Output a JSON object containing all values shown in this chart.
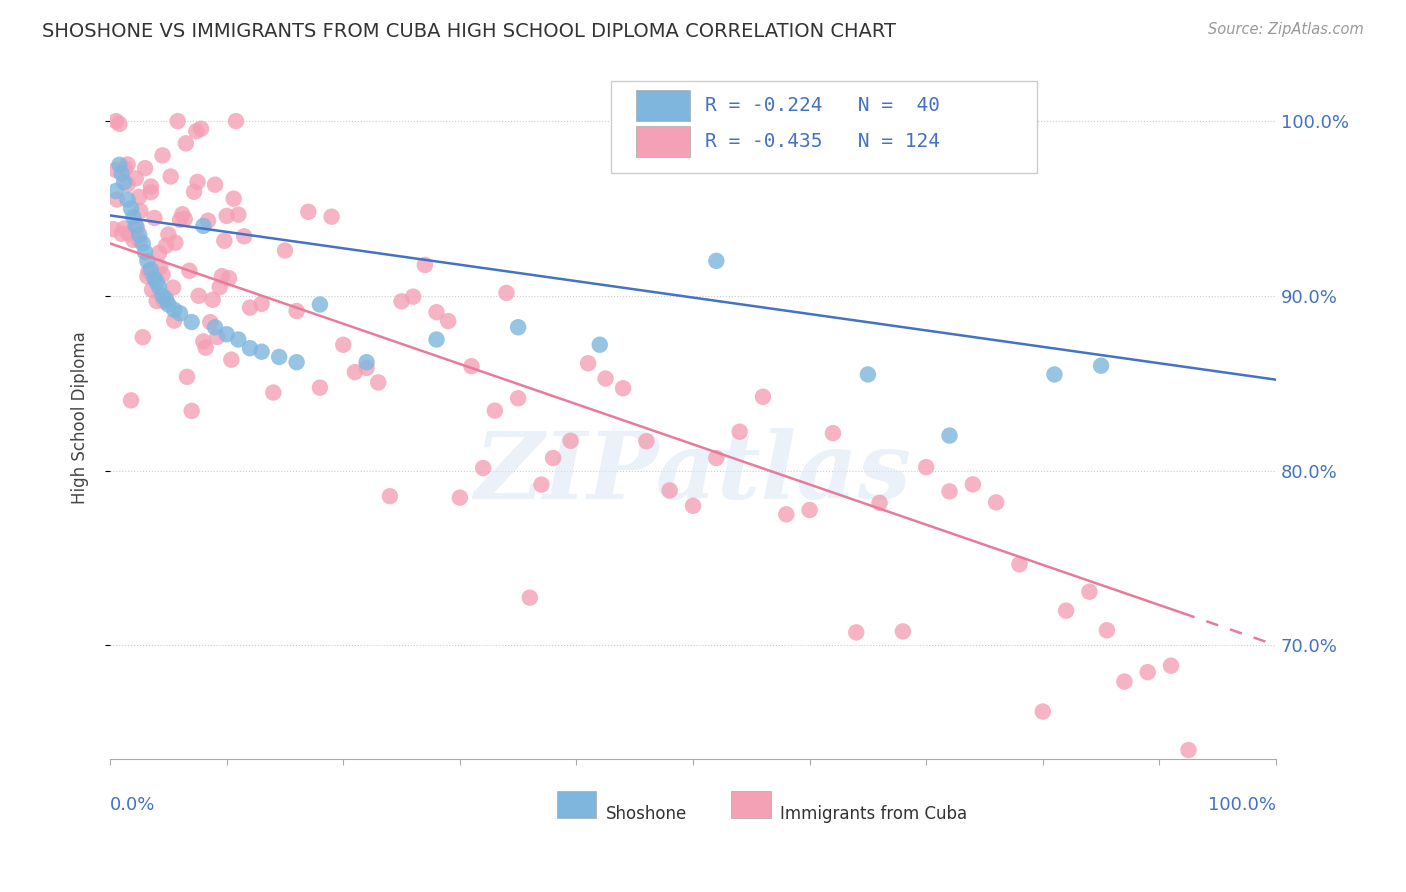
{
  "title": "SHOSHONE VS IMMIGRANTS FROM CUBA HIGH SCHOOL DIPLOMA CORRELATION CHART",
  "source": "Source: ZipAtlas.com",
  "ylabel": "High School Diploma",
  "ytick_values": [
    0.7,
    0.8,
    0.9,
    1.0
  ],
  "xlim": [
    0.0,
    1.0
  ],
  "ylim": [
    0.635,
    1.025
  ],
  "shoshone_color": "#7EB6DE",
  "cuba_color": "#F4A0B5",
  "shoshone_line_color": "#4472C4",
  "cuba_line_color": "#E87A9A",
  "shoshone_R": -0.224,
  "shoshone_N": 40,
  "cuba_R": -0.435,
  "cuba_N": 124,
  "watermark": "ZIPatlas",
  "background_color": "#ffffff",
  "grid_color": "#cccccc",
  "legend_text_color": "#4472C4",
  "right_axis_color": "#4472C4"
}
